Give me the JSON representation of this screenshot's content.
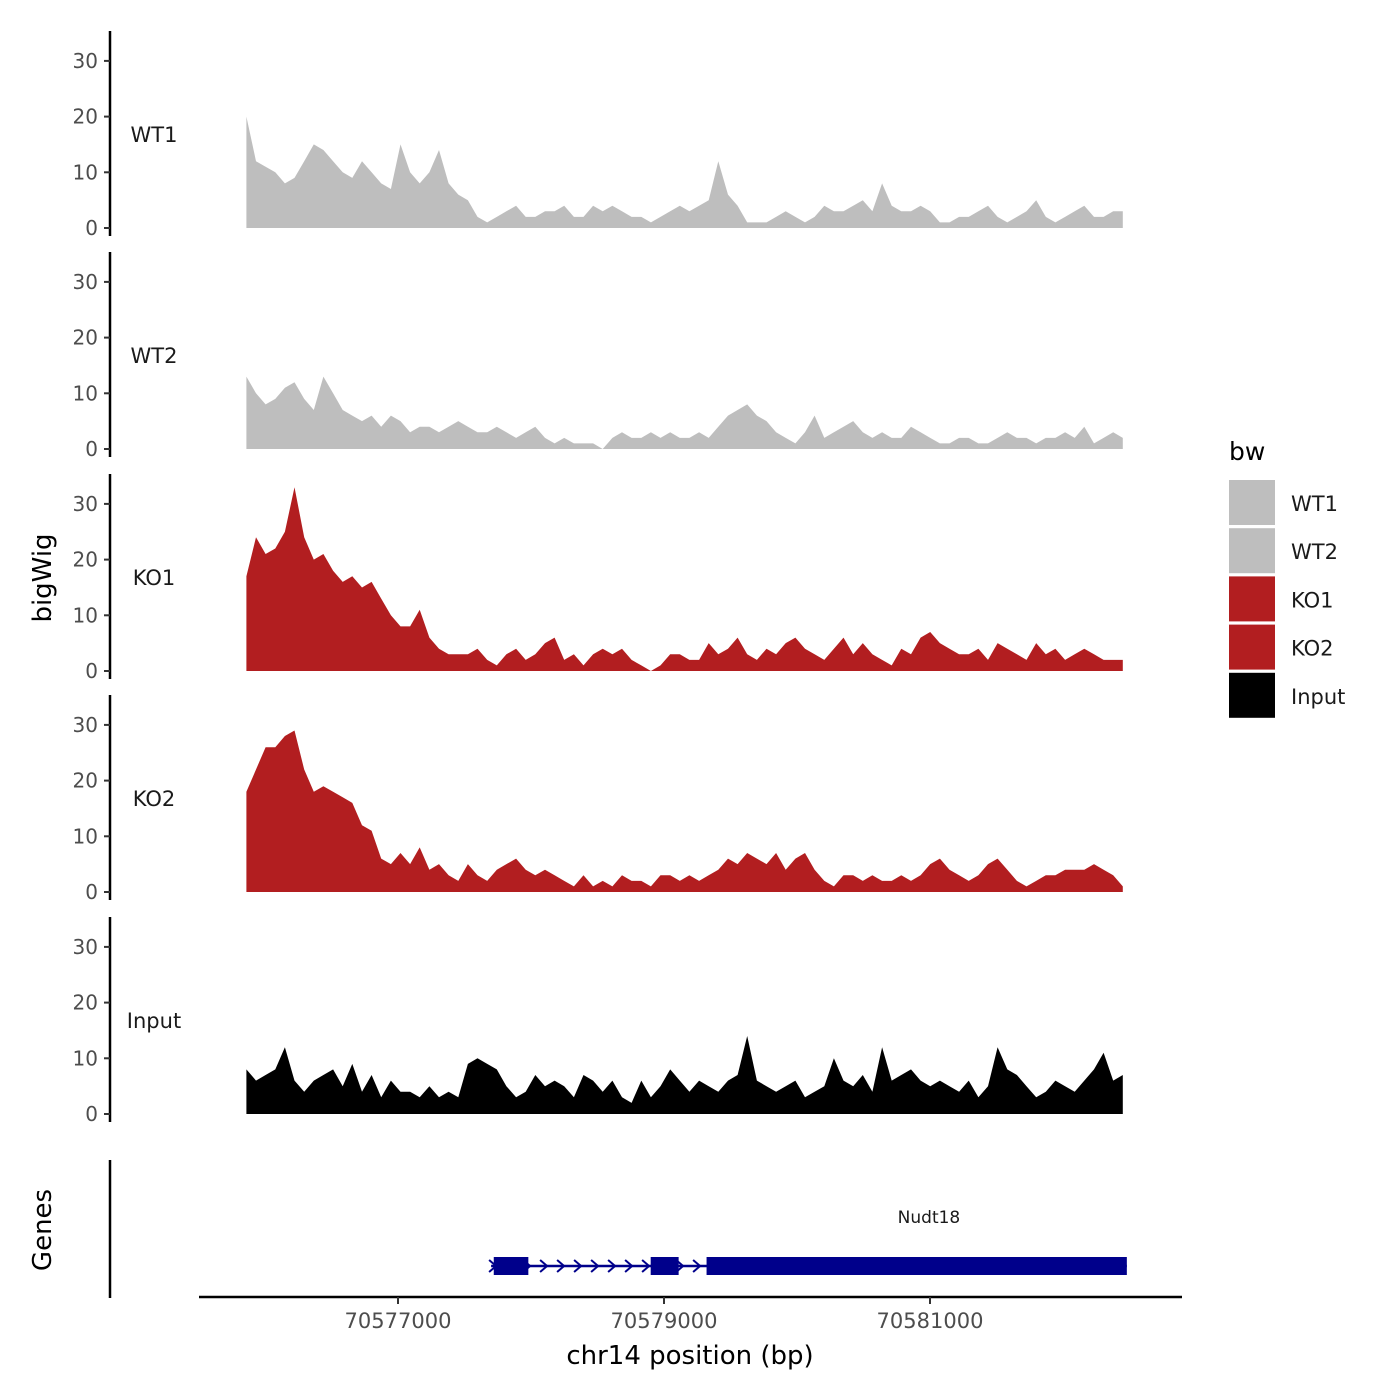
{
  "chart_data": {
    "type": "area",
    "title": "",
    "y_axis_label": "bigWig",
    "x_axis_label": "chr14 position (bp)",
    "x_range": [
      70575500,
      70582700
    ],
    "x_ticks": [
      70577000,
      70579000,
      70581000
    ],
    "x_tick_labels": [
      "70577000",
      "70579000",
      "70581000"
    ],
    "y_range": [
      0,
      35
    ],
    "y_ticks": [
      0,
      10,
      20,
      30
    ],
    "y_tick_labels": [
      "0",
      "10",
      "20",
      "30"
    ],
    "legend": {
      "title": "bw",
      "position": "right",
      "entries": [
        {
          "label": "WT1",
          "color": "#bebebe"
        },
        {
          "label": "WT2",
          "color": "#bebebe"
        },
        {
          "label": "KO1",
          "color": "#b21e20"
        },
        {
          "label": "KO2",
          "color": "#b21e20"
        },
        {
          "label": "Input",
          "color": "#000000"
        }
      ]
    },
    "track_x_start": 70575860,
    "track_x_end": 70582450,
    "series": [
      {
        "name": "WT1",
        "color": "#bebebe",
        "values": [
          20,
          12,
          11,
          10,
          8,
          9,
          12,
          15,
          14,
          12,
          10,
          9,
          12,
          10,
          8,
          7,
          15,
          10,
          8,
          10,
          14,
          8,
          6,
          5,
          2,
          1,
          2,
          3,
          4,
          2,
          2,
          3,
          3,
          4,
          2,
          2,
          4,
          3,
          4,
          3,
          2,
          2,
          1,
          2,
          3,
          4,
          3,
          4,
          5,
          12,
          6,
          4,
          1,
          1,
          1,
          2,
          3,
          2,
          1,
          2,
          4,
          3,
          3,
          4,
          5,
          3,
          8,
          4,
          3,
          3,
          4,
          3,
          1,
          1,
          2,
          2,
          3,
          4,
          2,
          1,
          2,
          3,
          5,
          2,
          1,
          2,
          3,
          4,
          2,
          2,
          3,
          3
        ]
      },
      {
        "name": "WT2",
        "color": "#bebebe",
        "values": [
          13,
          10,
          8,
          9,
          11,
          12,
          9,
          7,
          13,
          10,
          7,
          6,
          5,
          6,
          4,
          6,
          5,
          3,
          4,
          4,
          3,
          4,
          5,
          4,
          3,
          3,
          4,
          3,
          2,
          3,
          4,
          2,
          1,
          2,
          1,
          1,
          1,
          0,
          2,
          3,
          2,
          2,
          3,
          2,
          3,
          2,
          2,
          3,
          2,
          4,
          6,
          7,
          8,
          6,
          5,
          3,
          2,
          1,
          3,
          6,
          2,
          3,
          4,
          5,
          3,
          2,
          3,
          2,
          2,
          4,
          3,
          2,
          1,
          1,
          2,
          2,
          1,
          1,
          2,
          3,
          2,
          2,
          1,
          2,
          2,
          3,
          2,
          4,
          1,
          2,
          3,
          2
        ]
      },
      {
        "name": "KO1",
        "color": "#b21e20",
        "values": [
          17,
          24,
          21,
          22,
          25,
          33,
          24,
          20,
          21,
          18,
          16,
          17,
          15,
          16,
          13,
          10,
          8,
          8,
          11,
          6,
          4,
          3,
          3,
          3,
          4,
          2,
          1,
          3,
          4,
          2,
          3,
          5,
          6,
          2,
          3,
          1,
          3,
          4,
          3,
          4,
          2,
          1,
          0,
          1,
          3,
          3,
          2,
          2,
          5,
          3,
          4,
          6,
          3,
          2,
          4,
          3,
          5,
          6,
          4,
          3,
          2,
          4,
          6,
          3,
          5,
          3,
          2,
          1,
          4,
          3,
          6,
          7,
          5,
          4,
          3,
          3,
          4,
          2,
          5,
          4,
          3,
          2,
          5,
          3,
          4,
          2,
          3,
          4,
          3,
          2,
          2,
          2
        ]
      },
      {
        "name": "KO2",
        "color": "#b21e20",
        "values": [
          18,
          22,
          26,
          26,
          28,
          29,
          22,
          18,
          19,
          18,
          17,
          16,
          12,
          11,
          6,
          5,
          7,
          5,
          8,
          4,
          5,
          3,
          2,
          5,
          3,
          2,
          4,
          5,
          6,
          4,
          3,
          4,
          3,
          2,
          1,
          3,
          1,
          2,
          1,
          3,
          2,
          2,
          1,
          3,
          3,
          2,
          3,
          2,
          3,
          4,
          6,
          5,
          7,
          6,
          5,
          7,
          4,
          6,
          7,
          4,
          2,
          1,
          3,
          3,
          2,
          3,
          2,
          2,
          3,
          2,
          3,
          5,
          6,
          4,
          3,
          2,
          3,
          5,
          6,
          4,
          2,
          1,
          2,
          3,
          3,
          4,
          4,
          4,
          5,
          4,
          3,
          1
        ]
      },
      {
        "name": "Input",
        "color": "#000000",
        "values": [
          8,
          6,
          7,
          8,
          12,
          6,
          4,
          6,
          7,
          8,
          5,
          9,
          4,
          7,
          3,
          6,
          4,
          4,
          3,
          5,
          3,
          4,
          3,
          9,
          10,
          9,
          8,
          5,
          3,
          4,
          7,
          5,
          6,
          5,
          3,
          7,
          6,
          4,
          6,
          3,
          2,
          6,
          3,
          5,
          8,
          6,
          4,
          6,
          5,
          4,
          6,
          7,
          14,
          6,
          5,
          4,
          5,
          6,
          3,
          4,
          5,
          10,
          6,
          5,
          7,
          4,
          12,
          6,
          7,
          8,
          6,
          5,
          6,
          5,
          4,
          6,
          3,
          5,
          12,
          8,
          7,
          5,
          3,
          4,
          6,
          5,
          4,
          6,
          8,
          11,
          6,
          7
        ]
      }
    ],
    "gene_track": {
      "label": "Genes",
      "gene_name": "Nudt18",
      "color": "#00008b",
      "strand": "+",
      "start": 70577700,
      "end": 70582480,
      "exons": [
        [
          70577720,
          70577980
        ],
        [
          70578900,
          70579110
        ],
        [
          70579320,
          70582480
        ]
      ]
    }
  }
}
